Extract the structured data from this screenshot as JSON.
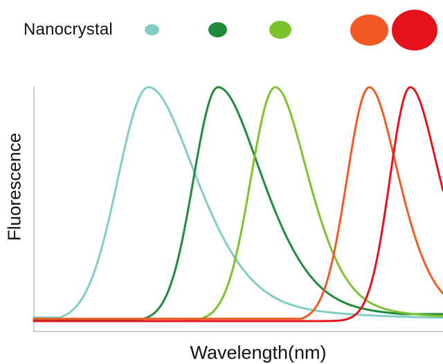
{
  "chart_data": {
    "type": "line",
    "title": "",
    "xlabel": "Wavelength(nm)",
    "ylabel": "Fluorescence",
    "legend_label": "Nanocrystal",
    "legend_placement": "top",
    "grid": false,
    "x_ticks_shown": false,
    "y_ticks_shown": false,
    "xlim": [
      0,
      100
    ],
    "ylim": [
      0,
      1
    ],
    "series": [
      {
        "color": "#7fcdc3",
        "peak_x": 28,
        "peak_y": 1.0,
        "width_left": 7.5,
        "width_right": 13,
        "tail_left": 0.015,
        "tail_right": 0.015
      },
      {
        "color": "#1f8a3a",
        "peak_x": 45,
        "peak_y": 1.0,
        "width_left": 6,
        "width_right": 12,
        "tail_left": 0.005,
        "tail_right": 0.03
      },
      {
        "color": "#7cc22c",
        "peak_x": 59,
        "peak_y": 1.0,
        "width_left": 6,
        "width_right": 9,
        "tail_left": 0.0,
        "tail_right": 0.0
      },
      {
        "color": "#f15a24",
        "peak_x": 82,
        "peak_y": 1.0,
        "width_left": 5.5,
        "width_right": 8,
        "tail_left": 0.01,
        "tail_right": 0.03
      },
      {
        "color": "#e3121b",
        "peak_x": 92,
        "peak_y": 1.0,
        "width_left": 5,
        "width_right": 8,
        "tail_left": 0.0,
        "tail_right": 0.01
      }
    ],
    "legend_dots": [
      {
        "color": "#7fcdc3"
      },
      {
        "color": "#1f8a3a"
      },
      {
        "color": "#7cc22c"
      },
      {
        "color": "#f15a24"
      },
      {
        "color": "#e3121b"
      }
    ]
  }
}
